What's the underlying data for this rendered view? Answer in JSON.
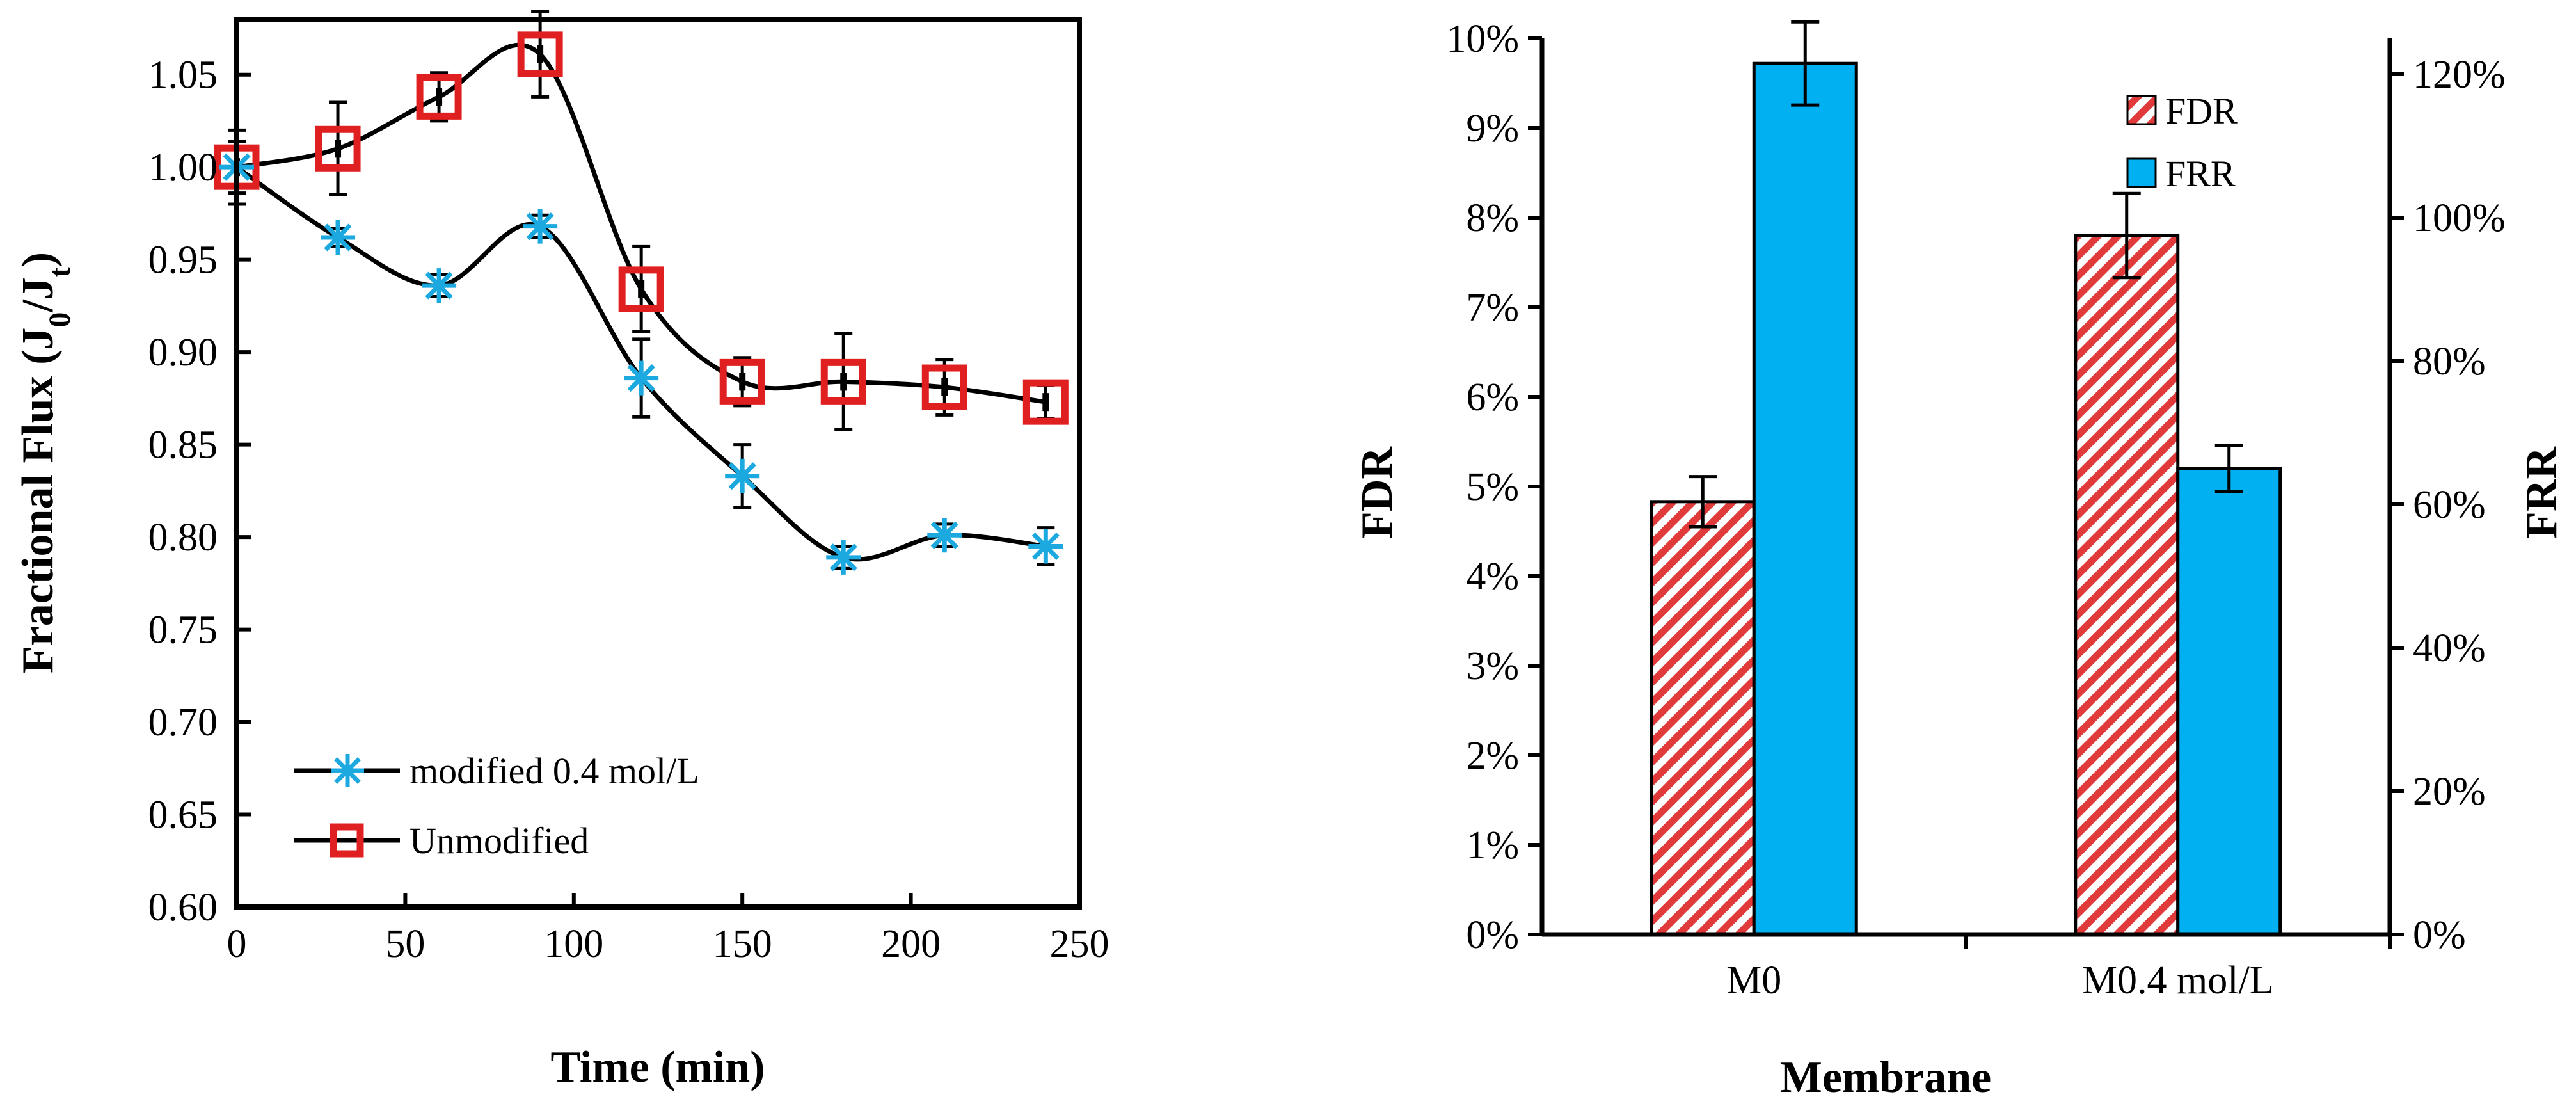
{
  "colors": {
    "axis": "#000000",
    "modified_marker": "#1ba9e0",
    "unmodified_marker": "#e02020",
    "fdr_hatch": "#e03a3a",
    "frr_fill": "#00b0f0"
  },
  "chart_data": [
    {
      "type": "line",
      "title": "",
      "xlabel": "Time (min)",
      "ylabel_main": "Fractional Flux (J",
      "ylabel_sub0": "0",
      "ylabel_mid": "/J",
      "ylabel_subt": "t",
      "ylabel_end": ")",
      "xlim": [
        0,
        250
      ],
      "ylim": [
        0.6,
        1.08
      ],
      "xticks": [
        0,
        50,
        100,
        150,
        200,
        250
      ],
      "xtick_labels": [
        "0",
        "50",
        "100",
        "150",
        "200",
        "250"
      ],
      "yticks": [
        0.6,
        0.65,
        0.7,
        0.75,
        0.8,
        0.85,
        0.9,
        0.95,
        1.0,
        1.05
      ],
      "ytick_labels": [
        "0.60",
        "0.65",
        "0.70",
        "0.75",
        "0.80",
        "0.85",
        "0.90",
        "0.95",
        "1.00",
        "1.05"
      ],
      "legend_position": "bottom-left",
      "series": [
        {
          "name": "modified 0.4 mol/L",
          "marker": "asterisk",
          "x": [
            0,
            30,
            60,
            90,
            120,
            150,
            180,
            210,
            240
          ],
          "y": [
            1.0,
            0.962,
            0.936,
            0.968,
            0.886,
            0.833,
            0.789,
            0.801,
            0.795
          ],
          "err": [
            0.014,
            0.005,
            0.006,
            0.006,
            0.021,
            0.017,
            0.006,
            0.006,
            0.01
          ]
        },
        {
          "name": "Unmodified",
          "marker": "square",
          "x": [
            0,
            30,
            60,
            90,
            120,
            150,
            180,
            210,
            240
          ],
          "y": [
            1.0,
            1.01,
            1.038,
            1.061,
            0.934,
            0.884,
            0.884,
            0.881,
            0.873
          ],
          "err": [
            0.02,
            0.025,
            0.013,
            0.023,
            0.023,
            0.013,
            0.026,
            0.015,
            0.009
          ]
        }
      ]
    },
    {
      "type": "bar",
      "title": "",
      "xlabel": "Membrane",
      "ylabel_left": "FDR",
      "ylabel_right": "FRR",
      "categories": [
        "M0",
        "M0.4 mol/L"
      ],
      "ylim_left": [
        0,
        10
      ],
      "ylim_right": [
        0,
        125
      ],
      "yticks_left": [
        0,
        1,
        2,
        3,
        4,
        5,
        6,
        7,
        8,
        9,
        10
      ],
      "ytick_labels_left": [
        "0%",
        "1%",
        "2%",
        "3%",
        "4%",
        "5%",
        "6%",
        "7%",
        "8%",
        "9%",
        "10%"
      ],
      "yticks_right": [
        0,
        20,
        40,
        60,
        80,
        100,
        120
      ],
      "ytick_labels_right": [
        "0%",
        "20%",
        "40%",
        "60%",
        "80%",
        "100%",
        "120%"
      ],
      "legend_position": "top-right",
      "series": [
        {
          "name": "FDR",
          "axis": "left",
          "pattern": "hatch",
          "values": [
            4.83,
            7.8
          ],
          "err": [
            0.28,
            0.47
          ]
        },
        {
          "name": "FRR",
          "axis": "right",
          "pattern": "solid",
          "values": [
            121.5,
            65.0
          ],
          "err": [
            5.8,
            3.2
          ]
        }
      ]
    }
  ]
}
